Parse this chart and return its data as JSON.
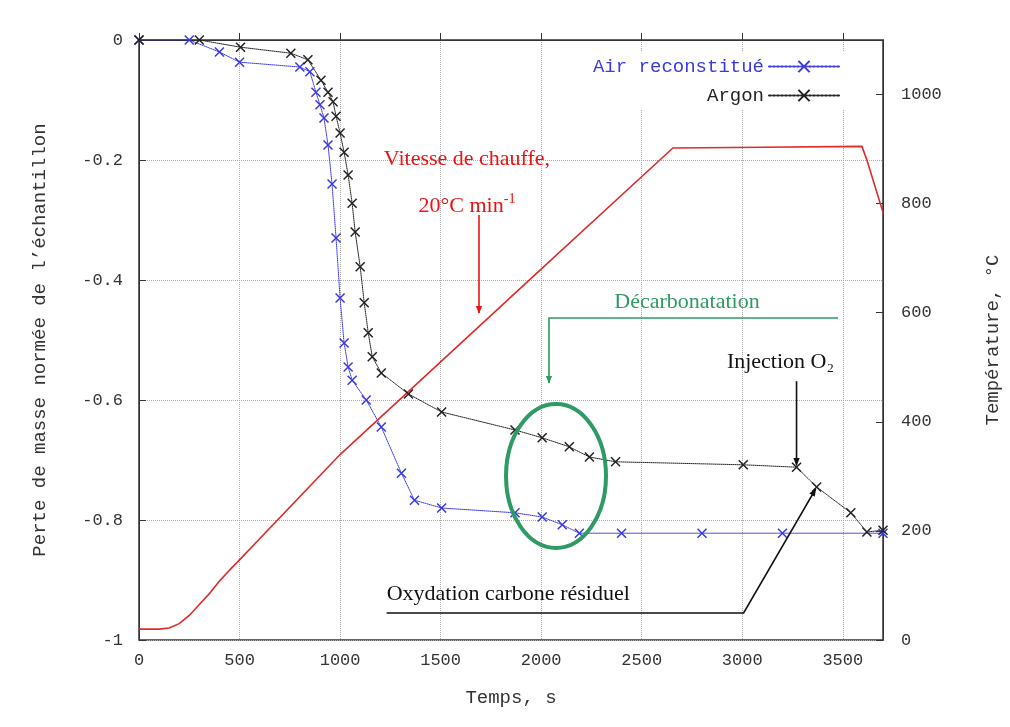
{
  "chart_data": {
    "type": "line",
    "xlabel": "Temps, s",
    "ylabel": "Perte de masse normée de l’échantillon",
    "y2label": "Température, °C",
    "xlim": [
      0,
      3700
    ],
    "xticks": [
      0,
      500,
      1000,
      1500,
      2000,
      2500,
      3000,
      3500
    ],
    "ylim": [
      -1,
      0
    ],
    "yticks": [
      -1,
      -0.8,
      -0.6,
      -0.4,
      -0.2,
      0
    ],
    "y2lim": [
      0,
      1100
    ],
    "y2ticks": [
      0,
      200,
      400,
      600,
      800,
      1000
    ],
    "grid": true,
    "legend": "top right",
    "series": [
      {
        "name": "Air reconstitué",
        "color": "#3a3ae0",
        "marker": "cross",
        "line_style": "dotted",
        "x": [
          0,
          250,
          400,
          500,
          800,
          850,
          880,
          900,
          920,
          940,
          960,
          980,
          1000,
          1020,
          1040,
          1060,
          1130,
          1205,
          1305,
          1370,
          1505,
          1870,
          2005,
          2105,
          2190,
          2400,
          2800,
          3200,
          3700
        ],
        "values": [
          0,
          0,
          -0.02,
          -0.037,
          -0.045,
          -0.053,
          -0.087,
          -0.108,
          -0.13,
          -0.175,
          -0.24,
          -0.33,
          -0.43,
          -0.505,
          -0.545,
          -0.567,
          -0.6,
          -0.645,
          -0.722,
          -0.767,
          -0.78,
          -0.788,
          -0.795,
          -0.808,
          -0.822,
          -0.822,
          -0.822,
          -0.822,
          -0.822
        ]
      },
      {
        "name": "Argon",
        "color": "#222222",
        "marker": "cross",
        "line_style": "dotted",
        "x": [
          0,
          300,
          505,
          755,
          840,
          905,
          940,
          965,
          980,
          1000,
          1020,
          1040,
          1060,
          1075,
          1100,
          1120,
          1140,
          1160,
          1205,
          1340,
          1505,
          1870,
          2005,
          2140,
          2240,
          2370,
          3005,
          3270,
          3370,
          3540,
          3620,
          3700
        ],
        "values": [
          0,
          0,
          -0.012,
          -0.022,
          -0.033,
          -0.067,
          -0.087,
          -0.103,
          -0.127,
          -0.155,
          -0.187,
          -0.225,
          -0.272,
          -0.32,
          -0.378,
          -0.438,
          -0.488,
          -0.528,
          -0.555,
          -0.59,
          -0.62,
          -0.65,
          -0.663,
          -0.678,
          -0.695,
          -0.703,
          -0.708,
          -0.712,
          -0.745,
          -0.788,
          -0.82,
          -0.817
        ]
      },
      {
        "color": "#e02a2a",
        "marker": "none",
        "line_style": "solid",
        "axis": "y2",
        "x": [
          0,
          100,
          150,
          200,
          250,
          300,
          350,
          400,
          450,
          500,
          1000,
          1500,
          2000,
          2655,
          3595,
          3620,
          3700
        ],
        "values": [
          20,
          20,
          22,
          30,
          45,
          65,
          85,
          108,
          128,
          147,
          340,
          510,
          680,
          902,
          905,
          880,
          784
        ]
      }
    ],
    "annotations": [
      "Vitesse de chauffe,\n20°C min$^{-1}$",
      "Décarbonatation",
      {
        "text": "Injection O₂",
        "x": 3270,
        "y": -0.712
      },
      {
        "text": "Oxydation carbone résiduel",
        "x": 3370,
        "y": -0.745
      }
    ]
  }
}
